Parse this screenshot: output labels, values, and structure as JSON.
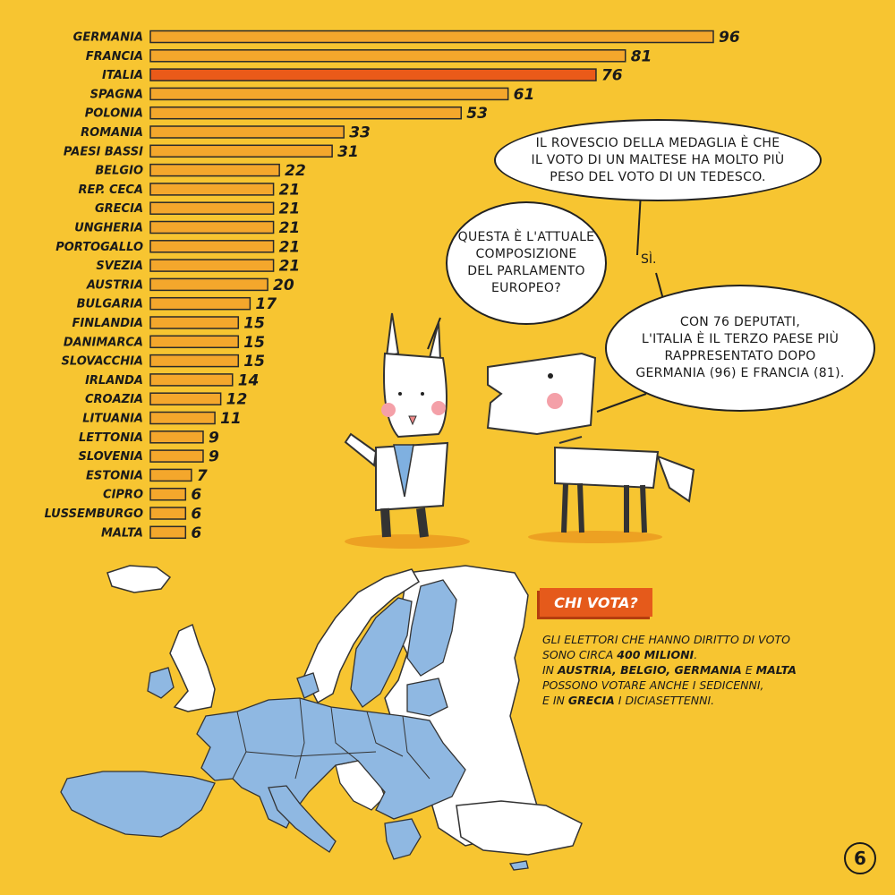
{
  "chart_data": {
    "type": "bar",
    "orientation": "horizontal",
    "categories": [
      "GERMANIA",
      "FRANCIA",
      "ITALIA",
      "SPAGNA",
      "POLONIA",
      "ROMANIA",
      "PAESI BASSI",
      "BELGIO",
      "REP. CECA",
      "GRECIA",
      "UNGHERIA",
      "PORTOGALLO",
      "SVEZIA",
      "AUSTRIA",
      "BULGARIA",
      "FINLANDIA",
      "DANIMARCA",
      "SLOVACCHIA",
      "IRLANDA",
      "CROAZIA",
      "LITUANIA",
      "LETTONIA",
      "SLOVENIA",
      "ESTONIA",
      "CIPRO",
      "LUSSEMBURGO",
      "MALTA"
    ],
    "values": [
      96,
      81,
      76,
      61,
      53,
      33,
      31,
      22,
      21,
      21,
      21,
      21,
      21,
      20,
      17,
      15,
      15,
      15,
      14,
      12,
      11,
      9,
      9,
      7,
      6,
      6,
      6
    ],
    "highlight": "ITALIA",
    "colors": {
      "bar": "#f4a72c",
      "highlight": "#ea5a19",
      "outline": "#2a2a2a"
    },
    "xlim": [
      0,
      96
    ],
    "grid": false,
    "legend": "none"
  },
  "speech": {
    "dog_top_lines": [
      "IL ROVESCIO DELLA MEDAGLIA È CHE",
      "IL VOTO DI UN MALTESE HA MOLTO PIÙ",
      "PESO DEL VOTO DI UN TEDESCO."
    ],
    "rabbit_lines": [
      "QUESTA È L'ATTUALE",
      "COMPOSIZIONE",
      "DEL PARLAMENTO",
      "EUROPEO?"
    ],
    "dog_yes": "SÌ.",
    "dog_bottom_lines": [
      "CON 76 DEPUTATI,",
      "L'ITALIA È IL TERZO PAESE PIÙ",
      "RAPPRESENTATO DOPO",
      "GERMANIA (96) E FRANCIA (81)."
    ]
  },
  "chi_vota": {
    "title": "CHI VOTA?",
    "line1": "GLI ELETTORI CHE HANNO DIRITTO DI VOTO",
    "line2a": "SONO CIRCA ",
    "line2b": "400 MILIONI",
    "line2c": ".",
    "line3a": "IN ",
    "line3b": "AUSTRIA, BELGIO, GERMANIA",
    "line3c": " E ",
    "line3d": "MALTA",
    "line4": "POSSONO VOTARE ANCHE I SEDICENNI,",
    "line5a": "E IN ",
    "line5b": "GRECIA",
    "line5c": " I DICIASETTENNI."
  },
  "map": {
    "eu_color": "#8fb8e2",
    "other_color": "#ffffff"
  },
  "page_number": "6"
}
